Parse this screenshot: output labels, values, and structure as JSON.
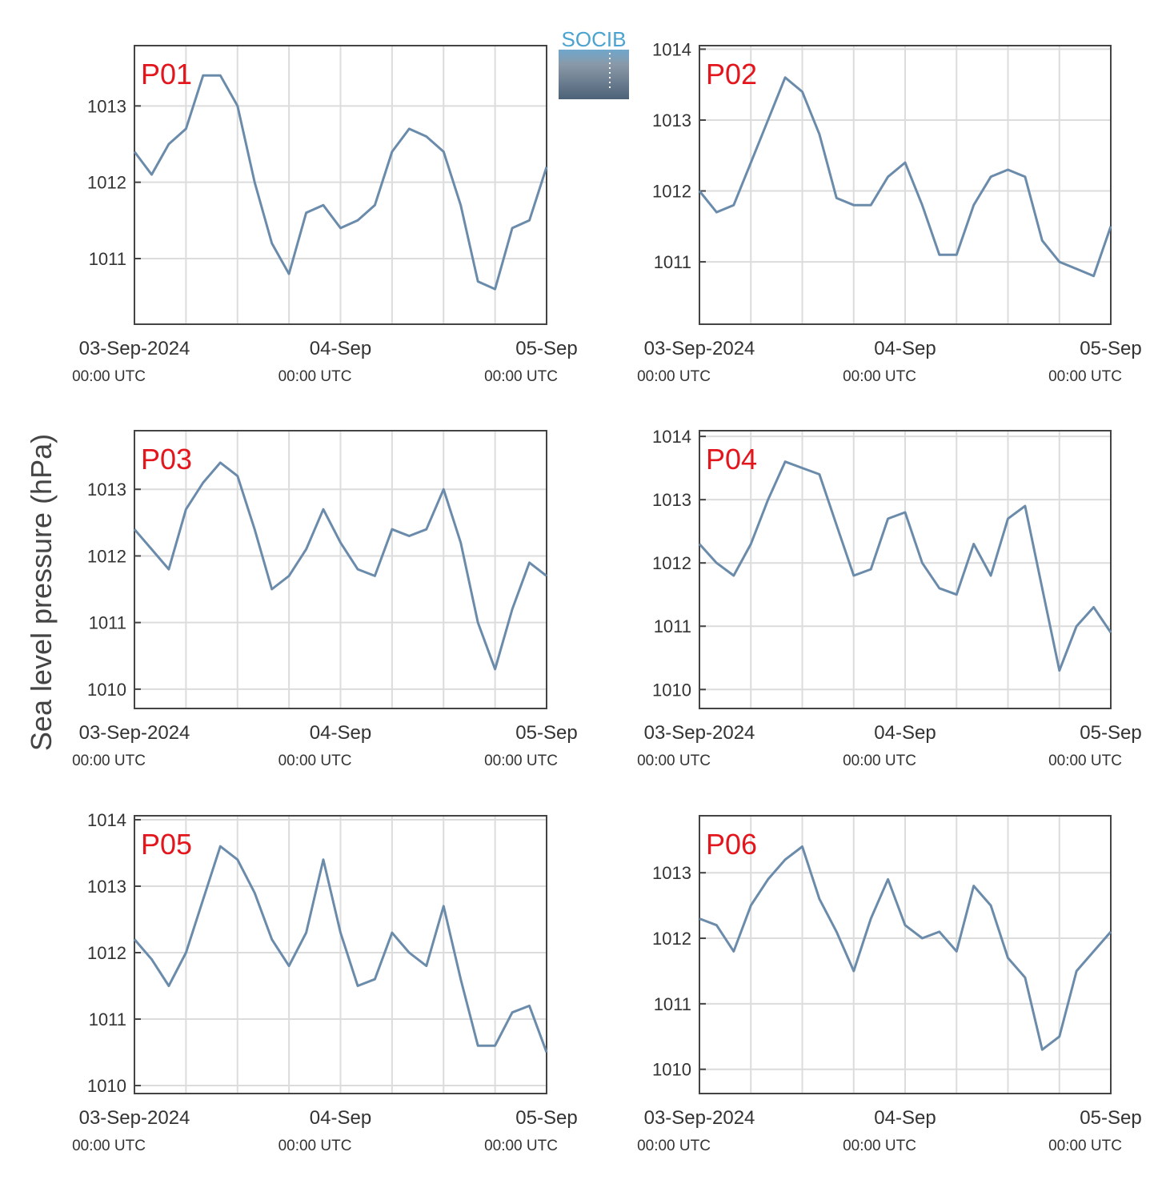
{
  "logo": "SOCIB",
  "ylabel": "Sea level pressure (hPa)",
  "chart_data": [
    {
      "type": "line",
      "title": "P01",
      "title_color": "#e3161d",
      "color": "#6b8bab",
      "grid": true,
      "x": [
        "2024-09-03T00:00",
        "2024-09-03T02:00",
        "2024-09-03T04:00",
        "2024-09-03T06:00",
        "2024-09-03T08:00",
        "2024-09-03T10:00",
        "2024-09-03T12:00",
        "2024-09-03T14:00",
        "2024-09-03T16:00",
        "2024-09-03T18:00",
        "2024-09-03T20:00",
        "2024-09-03T22:00",
        "2024-09-04T00:00",
        "2024-09-04T02:00",
        "2024-09-04T04:00",
        "2024-09-04T06:00",
        "2024-09-04T08:00",
        "2024-09-04T10:00",
        "2024-09-04T12:00",
        "2024-09-04T14:00",
        "2024-09-04T16:00",
        "2024-09-04T18:00",
        "2024-09-04T20:00",
        "2024-09-04T22:00",
        "2024-09-05T00:00"
      ],
      "values": [
        1012.4,
        1012.1,
        1012.5,
        1012.7,
        1013.4,
        1013.4,
        1013.0,
        1012.0,
        1011.2,
        1010.8,
        1011.6,
        1011.7,
        1011.4,
        1011.5,
        1011.7,
        1012.4,
        1012.7,
        1012.6,
        1012.4,
        1011.7,
        1010.7,
        1010.6,
        1011.4,
        1011.5,
        1012.2
      ],
      "xlim": [
        "2024-09-03T00:00",
        "2024-09-05T00:00"
      ],
      "xticks": [
        {
          "value": "2024-09-03T00:00",
          "label": "03-Sep-2024",
          "sublabel": "00:00 UTC"
        },
        {
          "value": "2024-09-04T00:00",
          "label": "04-Sep",
          "sublabel": "00:00 UTC"
        },
        {
          "value": "2024-09-05T00:00",
          "label": "05-Sep",
          "sublabel": "00:00 UTC"
        }
      ],
      "xminorticks": [
        "2024-09-03T06:00",
        "2024-09-03T12:00",
        "2024-09-03T18:00",
        "2024-09-04T06:00",
        "2024-09-04T12:00",
        "2024-09-04T18:00"
      ],
      "ylim": [
        1010.14,
        1013.79
      ],
      "yticks": [
        1011,
        1012,
        1013
      ]
    },
    {
      "type": "line",
      "title": "P02",
      "title_color": "#e3161d",
      "color": "#6b8bab",
      "grid": true,
      "x": [
        "2024-09-03T00:00",
        "2024-09-03T02:00",
        "2024-09-03T04:00",
        "2024-09-03T06:00",
        "2024-09-03T08:00",
        "2024-09-03T10:00",
        "2024-09-03T12:00",
        "2024-09-03T14:00",
        "2024-09-03T16:00",
        "2024-09-03T18:00",
        "2024-09-03T20:00",
        "2024-09-03T22:00",
        "2024-09-04T00:00",
        "2024-09-04T02:00",
        "2024-09-04T04:00",
        "2024-09-04T06:00",
        "2024-09-04T08:00",
        "2024-09-04T10:00",
        "2024-09-04T12:00",
        "2024-09-04T14:00",
        "2024-09-04T16:00",
        "2024-09-04T18:00",
        "2024-09-04T20:00",
        "2024-09-04T22:00",
        "2024-09-05T00:00"
      ],
      "values": [
        1012.0,
        1011.7,
        1011.8,
        1012.4,
        1013.0,
        1013.6,
        1013.4,
        1012.8,
        1011.9,
        1011.8,
        1011.8,
        1012.2,
        1012.4,
        1011.8,
        1011.1,
        1011.1,
        1011.8,
        1012.2,
        1012.3,
        1012.2,
        1011.3,
        1011.0,
        1010.9,
        1010.8,
        1011.5
      ],
      "xlim": [
        "2024-09-03T00:00",
        "2024-09-05T00:00"
      ],
      "xticks": [
        {
          "value": "2024-09-03T00:00",
          "label": "03-Sep-2024",
          "sublabel": "00:00 UTC"
        },
        {
          "value": "2024-09-04T00:00",
          "label": "04-Sep",
          "sublabel": "00:00 UTC"
        },
        {
          "value": "2024-09-05T00:00",
          "label": "05-Sep",
          "sublabel": "00:00 UTC"
        }
      ],
      "xminorticks": [
        "2024-09-03T06:00",
        "2024-09-03T12:00",
        "2024-09-03T18:00",
        "2024-09-04T06:00",
        "2024-09-04T12:00",
        "2024-09-04T18:00"
      ],
      "ylim": [
        1010.12,
        1014.05
      ],
      "yticks": [
        1011,
        1012,
        1013,
        1014
      ]
    },
    {
      "type": "line",
      "title": "P03",
      "title_color": "#e3161d",
      "color": "#6b8bab",
      "grid": true,
      "x": [
        "2024-09-03T00:00",
        "2024-09-03T02:00",
        "2024-09-03T04:00",
        "2024-09-03T06:00",
        "2024-09-03T08:00",
        "2024-09-03T10:00",
        "2024-09-03T12:00",
        "2024-09-03T14:00",
        "2024-09-03T16:00",
        "2024-09-03T18:00",
        "2024-09-03T20:00",
        "2024-09-03T22:00",
        "2024-09-04T00:00",
        "2024-09-04T02:00",
        "2024-09-04T04:00",
        "2024-09-04T06:00",
        "2024-09-04T08:00",
        "2024-09-04T10:00",
        "2024-09-04T12:00",
        "2024-09-04T14:00",
        "2024-09-04T16:00",
        "2024-09-04T18:00",
        "2024-09-04T20:00",
        "2024-09-04T22:00",
        "2024-09-05T00:00"
      ],
      "values": [
        1012.4,
        1012.1,
        1011.8,
        1012.7,
        1013.1,
        1013.4,
        1013.2,
        1012.4,
        1011.5,
        1011.7,
        1012.1,
        1012.7,
        1012.2,
        1011.8,
        1011.7,
        1012.4,
        1012.3,
        1012.4,
        1013.0,
        1012.2,
        1011.0,
        1010.3,
        1011.2,
        1011.9,
        1011.7
      ],
      "xlim": [
        "2024-09-03T00:00",
        "2024-09-05T00:00"
      ],
      "xticks": [
        {
          "value": "2024-09-03T00:00",
          "label": "03-Sep-2024",
          "sublabel": "00:00 UTC"
        },
        {
          "value": "2024-09-04T00:00",
          "label": "04-Sep",
          "sublabel": "00:00 UTC"
        },
        {
          "value": "2024-09-05T00:00",
          "label": "05-Sep",
          "sublabel": "00:00 UTC"
        }
      ],
      "xminorticks": [
        "2024-09-03T06:00",
        "2024-09-03T12:00",
        "2024-09-03T18:00",
        "2024-09-04T06:00",
        "2024-09-04T12:00",
        "2024-09-04T18:00"
      ],
      "ylim": [
        1009.71,
        1013.88
      ],
      "yticks": [
        1010,
        1011,
        1012,
        1013
      ]
    },
    {
      "type": "line",
      "title": "P04",
      "title_color": "#e3161d",
      "color": "#6b8bab",
      "grid": true,
      "x": [
        "2024-09-03T00:00",
        "2024-09-03T02:00",
        "2024-09-03T04:00",
        "2024-09-03T06:00",
        "2024-09-03T08:00",
        "2024-09-03T10:00",
        "2024-09-03T12:00",
        "2024-09-03T14:00",
        "2024-09-03T16:00",
        "2024-09-03T18:00",
        "2024-09-03T20:00",
        "2024-09-03T22:00",
        "2024-09-04T00:00",
        "2024-09-04T02:00",
        "2024-09-04T04:00",
        "2024-09-04T06:00",
        "2024-09-04T08:00",
        "2024-09-04T10:00",
        "2024-09-04T12:00",
        "2024-09-04T14:00",
        "2024-09-04T16:00",
        "2024-09-04T18:00",
        "2024-09-04T20:00",
        "2024-09-04T22:00",
        "2024-09-05T00:00"
      ],
      "values": [
        1012.3,
        1012.0,
        1011.8,
        1012.3,
        1013.0,
        1013.6,
        1013.5,
        1013.4,
        1012.6,
        1011.8,
        1011.9,
        1012.7,
        1012.8,
        1012.0,
        1011.6,
        1011.5,
        1012.3,
        1011.8,
        1012.7,
        1012.9,
        1011.6,
        1010.3,
        1011.0,
        1011.3,
        1010.9
      ],
      "xlim": [
        "2024-09-03T00:00",
        "2024-09-05T00:00"
      ],
      "xticks": [
        {
          "value": "2024-09-03T00:00",
          "label": "03-Sep-2024",
          "sublabel": "00:00 UTC"
        },
        {
          "value": "2024-09-04T00:00",
          "label": "04-Sep",
          "sublabel": "00:00 UTC"
        },
        {
          "value": "2024-09-05T00:00",
          "label": "05-Sep",
          "sublabel": "00:00 UTC"
        }
      ],
      "xminorticks": [
        "2024-09-03T06:00",
        "2024-09-03T12:00",
        "2024-09-03T18:00",
        "2024-09-04T06:00",
        "2024-09-04T12:00",
        "2024-09-04T18:00"
      ],
      "ylim": [
        1009.7,
        1014.09
      ],
      "yticks": [
        1010,
        1011,
        1012,
        1013,
        1014
      ]
    },
    {
      "type": "line",
      "title": "P05",
      "title_color": "#e3161d",
      "color": "#6b8bab",
      "grid": true,
      "x": [
        "2024-09-03T00:00",
        "2024-09-03T02:00",
        "2024-09-03T04:00",
        "2024-09-03T06:00",
        "2024-09-03T08:00",
        "2024-09-03T10:00",
        "2024-09-03T12:00",
        "2024-09-03T14:00",
        "2024-09-03T16:00",
        "2024-09-03T18:00",
        "2024-09-03T20:00",
        "2024-09-03T22:00",
        "2024-09-04T00:00",
        "2024-09-04T02:00",
        "2024-09-04T04:00",
        "2024-09-04T06:00",
        "2024-09-04T08:00",
        "2024-09-04T10:00",
        "2024-09-04T12:00",
        "2024-09-04T14:00",
        "2024-09-04T16:00",
        "2024-09-04T18:00",
        "2024-09-04T20:00",
        "2024-09-04T22:00",
        "2024-09-05T00:00"
      ],
      "values": [
        1012.2,
        1011.9,
        1011.5,
        1012.0,
        1012.8,
        1013.6,
        1013.4,
        1012.9,
        1012.2,
        1011.8,
        1012.3,
        1013.4,
        1012.3,
        1011.5,
        1011.6,
        1012.3,
        1012.0,
        1011.8,
        1012.7,
        1011.6,
        1010.6,
        1010.6,
        1011.1,
        1011.2,
        1010.5
      ],
      "xlim": [
        "2024-09-03T00:00",
        "2024-09-05T00:00"
      ],
      "xticks": [
        {
          "value": "2024-09-03T00:00",
          "label": "03-Sep-2024",
          "sublabel": "00:00 UTC"
        },
        {
          "value": "2024-09-04T00:00",
          "label": "04-Sep",
          "sublabel": "00:00 UTC"
        },
        {
          "value": "2024-09-05T00:00",
          "label": "05-Sep",
          "sublabel": "00:00 UTC"
        }
      ],
      "xminorticks": [
        "2024-09-03T06:00",
        "2024-09-03T12:00",
        "2024-09-03T18:00",
        "2024-09-04T06:00",
        "2024-09-04T12:00",
        "2024-09-04T18:00"
      ],
      "ylim": [
        1009.88,
        1014.06
      ],
      "yticks": [
        1010,
        1011,
        1012,
        1013,
        1014
      ]
    },
    {
      "type": "line",
      "title": "P06",
      "title_color": "#e3161d",
      "color": "#6b8bab",
      "grid": true,
      "x": [
        "2024-09-03T00:00",
        "2024-09-03T02:00",
        "2024-09-03T04:00",
        "2024-09-03T06:00",
        "2024-09-03T08:00",
        "2024-09-03T10:00",
        "2024-09-03T12:00",
        "2024-09-03T14:00",
        "2024-09-03T16:00",
        "2024-09-03T18:00",
        "2024-09-03T20:00",
        "2024-09-03T22:00",
        "2024-09-04T00:00",
        "2024-09-04T02:00",
        "2024-09-04T04:00",
        "2024-09-04T06:00",
        "2024-09-04T08:00",
        "2024-09-04T10:00",
        "2024-09-04T12:00",
        "2024-09-04T14:00",
        "2024-09-04T16:00",
        "2024-09-04T18:00",
        "2024-09-04T20:00",
        "2024-09-04T22:00",
        "2024-09-05T00:00"
      ],
      "values": [
        1012.3,
        1012.2,
        1011.8,
        1012.5,
        1012.9,
        1013.2,
        1013.4,
        1012.6,
        1012.1,
        1011.5,
        1012.3,
        1012.9,
        1012.2,
        1012.0,
        1012.1,
        1011.8,
        1012.8,
        1012.5,
        1011.7,
        1011.4,
        1010.3,
        1010.5,
        1011.5,
        1011.8,
        1012.1
      ],
      "xlim": [
        "2024-09-03T00:00",
        "2024-09-05T00:00"
      ],
      "xticks": [
        {
          "value": "2024-09-03T00:00",
          "label": "03-Sep-2024",
          "sublabel": "00:00 UTC"
        },
        {
          "value": "2024-09-04T00:00",
          "label": "04-Sep",
          "sublabel": "00:00 UTC"
        },
        {
          "value": "2024-09-05T00:00",
          "label": "05-Sep",
          "sublabel": "00:00 UTC"
        }
      ],
      "xminorticks": [
        "2024-09-03T06:00",
        "2024-09-03T12:00",
        "2024-09-03T18:00",
        "2024-09-04T06:00",
        "2024-09-04T12:00",
        "2024-09-04T18:00"
      ],
      "ylim": [
        1009.63,
        1013.87
      ],
      "yticks": [
        1010,
        1011,
        1012,
        1013
      ]
    }
  ]
}
